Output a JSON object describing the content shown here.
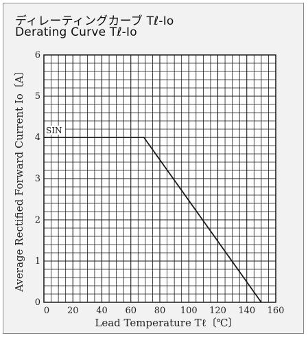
{
  "title_jp": "ディレーティングカーブ Tℓ-Io",
  "title_en": "Derating Curve Tℓ-Io",
  "chart_data": {
    "type": "line",
    "title": "Derating Curve Tℓ-Io",
    "xlabel": "Lead Temperature  Tℓ〔℃〕",
    "ylabel": "Average Rectified Forward Current Io〔A〕",
    "xlim": [
      0,
      160
    ],
    "ylim": [
      0,
      6
    ],
    "x_ticks": [
      0,
      20,
      40,
      60,
      80,
      100,
      120,
      140,
      160
    ],
    "y_ticks": [
      0,
      1,
      2,
      3,
      4,
      5,
      6
    ],
    "grid": true,
    "series": [
      {
        "name": "SIN",
        "x": [
          0,
          69,
          150
        ],
        "y": [
          4,
          4,
          0
        ]
      }
    ],
    "colors": {
      "grid": "#1a1a1a",
      "line": "#1a1a1a",
      "plot_bg": "#ffffff"
    }
  }
}
